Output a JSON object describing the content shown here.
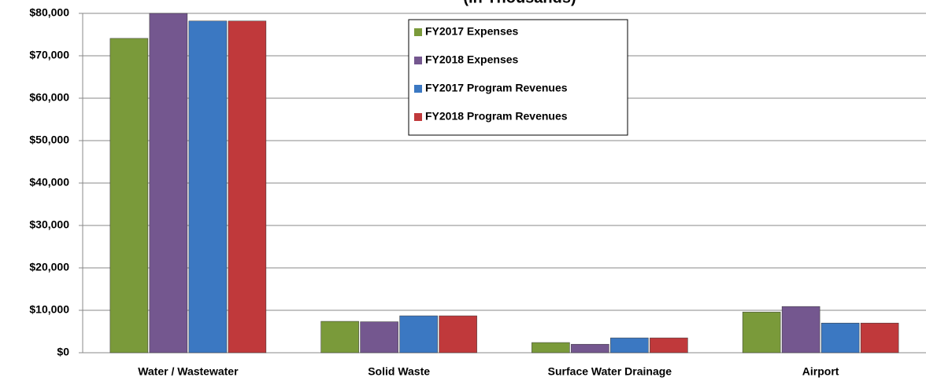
{
  "chart_data": {
    "type": "bar",
    "title": "(In Thousands)",
    "categories": [
      "Water / Wastewater",
      "Solid Waste",
      "Surface Water Drainage",
      "Airport"
    ],
    "series": [
      {
        "name": "FY2017 Expenses",
        "color": "#7a9a3a",
        "values": [
          74100,
          7400,
          2400,
          9600
        ]
      },
      {
        "name": "FY2018 Expenses",
        "color": "#74578f",
        "values": [
          80000,
          7300,
          2000,
          10900
        ]
      },
      {
        "name": "FY2017 Program Revenues",
        "color": "#3b78c2",
        "values": [
          78200,
          8700,
          3500,
          7000
        ]
      },
      {
        "name": "FY2018 Program Revenues",
        "color": "#c0393b",
        "values": [
          78200,
          8700,
          3500,
          7000
        ]
      }
    ],
    "ylim": [
      0,
      80000
    ],
    "yticks": [
      {
        "value": 0,
        "label": "$0"
      },
      {
        "value": 10000,
        "label": "$10,000"
      },
      {
        "value": 20000,
        "label": "$20,000"
      },
      {
        "value": 30000,
        "label": "$30,000"
      },
      {
        "value": 40000,
        "label": "$40,000"
      },
      {
        "value": 50000,
        "label": "$50,000"
      },
      {
        "value": 60000,
        "label": "$60,000"
      },
      {
        "value": 70000,
        "label": "$70,000"
      },
      {
        "value": 80000,
        "label": "$80,000"
      }
    ],
    "grid": true,
    "legend": "top"
  }
}
